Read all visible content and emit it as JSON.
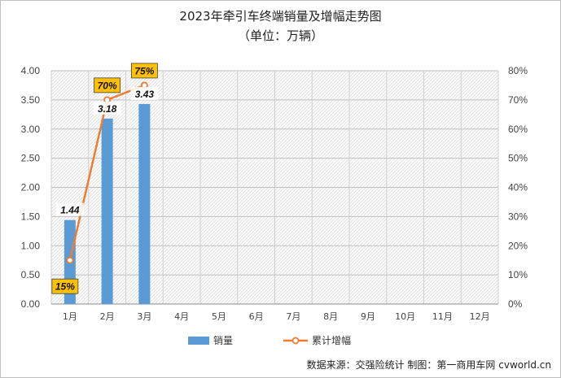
{
  "chart_data": {
    "type": "bar",
    "title": "2023年牵引车终端销量及增幅走势图",
    "subtitle": "（单位：万辆）",
    "categories": [
      "1月",
      "2月",
      "3月",
      "4月",
      "5月",
      "6月",
      "7月",
      "8月",
      "9月",
      "10月",
      "11月",
      "12月"
    ],
    "series": [
      {
        "name": "销量",
        "type": "bar",
        "axis": "left",
        "values": [
          1.44,
          3.18,
          3.43,
          null,
          null,
          null,
          null,
          null,
          null,
          null,
          null,
          null
        ],
        "data_labels": [
          "1.44",
          "3.18",
          "3.43"
        ],
        "color": "#5b9bd5"
      },
      {
        "name": "累计增幅",
        "type": "line",
        "axis": "right",
        "values": [
          15,
          70,
          75,
          null,
          null,
          null,
          null,
          null,
          null,
          null,
          null,
          null
        ],
        "data_labels": [
          "15%",
          "70%",
          "75%"
        ],
        "color": "#ed7d31"
      }
    ],
    "y_left": {
      "ylim": [
        0,
        4
      ],
      "ticks": [
        "0.00",
        "0.50",
        "1.00",
        "1.50",
        "2.00",
        "2.50",
        "3.00",
        "3.50",
        "4.00"
      ]
    },
    "y_right": {
      "ylim": [
        0,
        80
      ],
      "ticks": [
        "0%",
        "10%",
        "20%",
        "30%",
        "40%",
        "50%",
        "60%",
        "70%",
        "80%"
      ]
    },
    "grid": true,
    "legend_position": "bottom",
    "label_box_color": "#ffc000"
  },
  "source_text": "数据来源：交强险统计   制图：第一商用车网 cvworld.cn"
}
